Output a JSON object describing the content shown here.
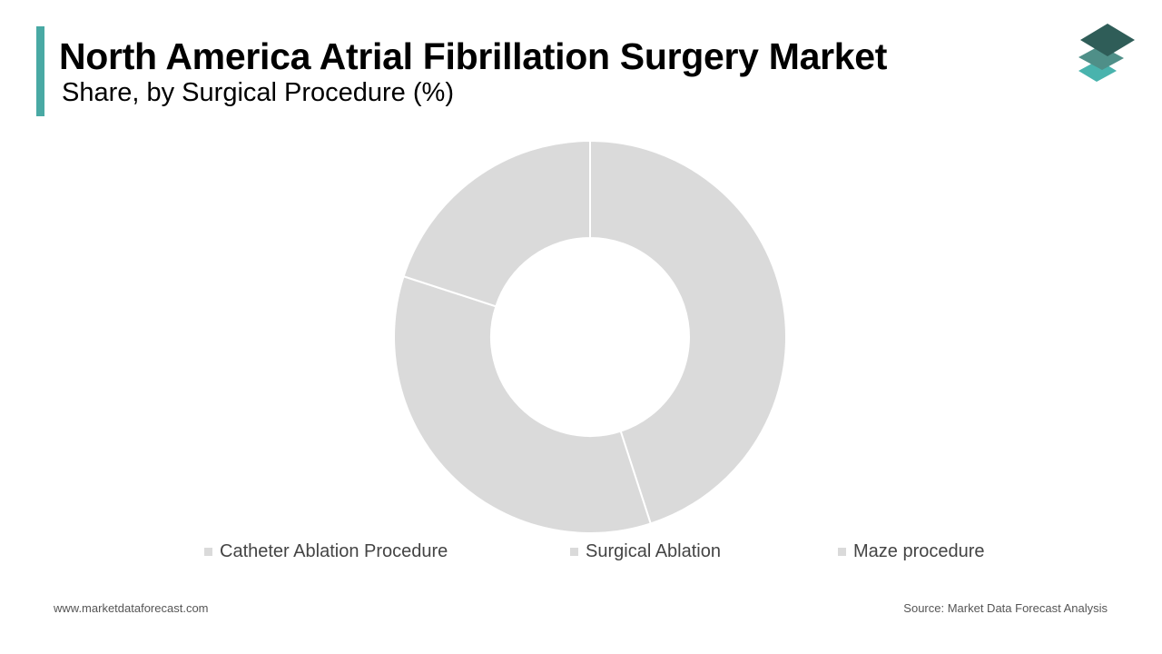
{
  "header": {
    "title": "North America Atrial Fibrillation Surgery Market",
    "subtitle": "Share, by Surgical Procedure (%)",
    "accent_color": "#49a9a4"
  },
  "logo": {
    "icon": "stacked-layers-logo",
    "colors": [
      "#2f5d58",
      "#4f8f88",
      "#49b3ad"
    ]
  },
  "chart_data": {
    "type": "pie",
    "donut": true,
    "title": "North America Atrial Fibrillation Surgery Market",
    "subtitle": "Share, by Surgical Procedure (%)",
    "categories": [
      "Catheter Ablation Procedure",
      "Surgical Ablation",
      "Maze procedure"
    ],
    "values": [
      45,
      35,
      20
    ],
    "unit": "%",
    "colors": [
      "#dadada",
      "#dadada",
      "#dadada"
    ],
    "separator_color": "#ffffff",
    "start_angle": "12 o'clock",
    "direction": "clockwise",
    "legend_position": "bottom"
  },
  "footer": {
    "website": "www.marketdataforecast.com",
    "source": "Source: Market Data Forecast Analysis"
  }
}
